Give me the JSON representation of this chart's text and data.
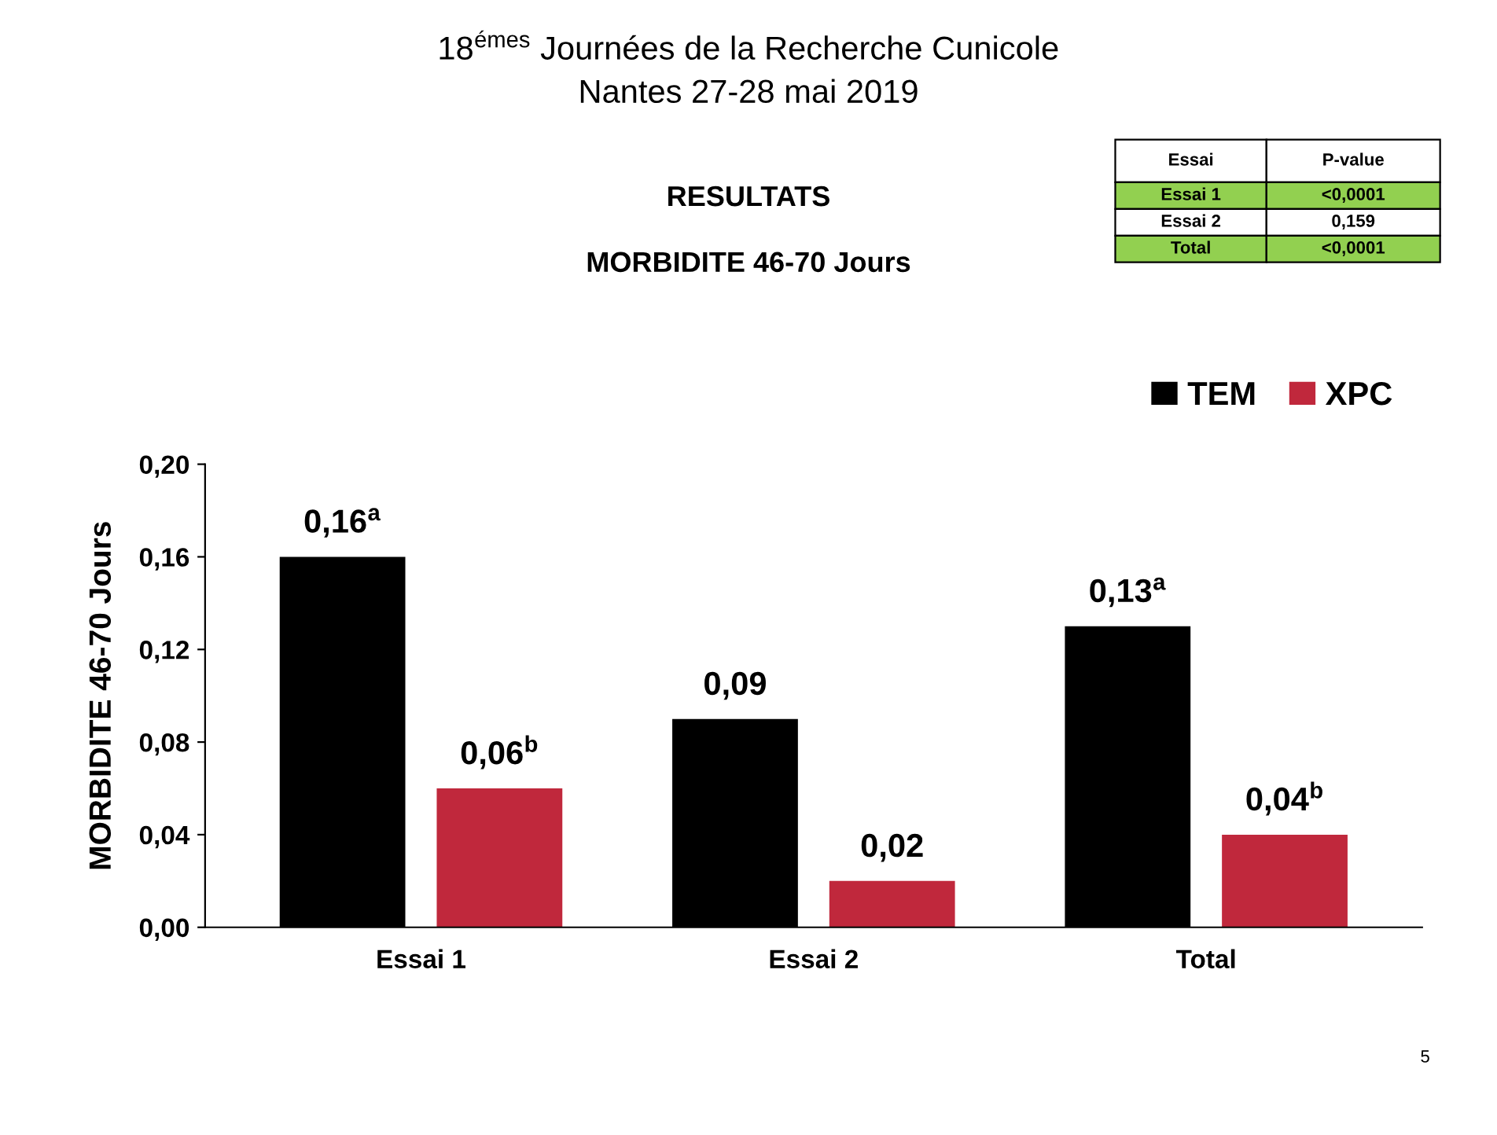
{
  "chart_data": {
    "type": "bar",
    "title": "18$^{émes}$ Journées de la Recherche Cunicole",
    "subtitle": "Nantes 27-28 mai 2019",
    "ylabel": "MORBIDITE 46-70 Jours",
    "categories": [
      "Essai 1",
      "Essai 2",
      "Total"
    ],
    "series": [
      {
        "name": "TEM",
        "color": "#000000",
        "values": [
          0.16,
          0.09,
          0.13
        ],
        "value_labels": [
          "0,16$^{a}$",
          "0,09",
          "0,13$^{a}$"
        ]
      },
      {
        "name": "XPC",
        "color": "#c0283c",
        "values": [
          0.06,
          0.02,
          0.04
        ],
        "value_labels": [
          "0,06$^{b}$",
          "0,02",
          "0,04$^{b}$"
        ]
      }
    ],
    "ylim": [
      0,
      0.2
    ],
    "yticks": [
      {
        "value": 0,
        "label": "0,00"
      },
      {
        "value": 0.04,
        "label": "0,04"
      },
      {
        "value": 0.08,
        "label": "0,08"
      },
      {
        "value": 0.12,
        "label": "0,12"
      },
      {
        "value": 0.16,
        "label": "0,16"
      },
      {
        "value": 0.2,
        "label": "0,20"
      }
    ],
    "grid": false,
    "legend": "top right",
    "annotations": [
      "RESULTATS",
      "MORBIDITE 46-70 Jours",
      "Essai",
      "P-value",
      "Essai 1",
      "<0,0001",
      "Essai 2",
      "0,159",
      "Total",
      "<0,0001",
      "5"
    ]
  }
}
